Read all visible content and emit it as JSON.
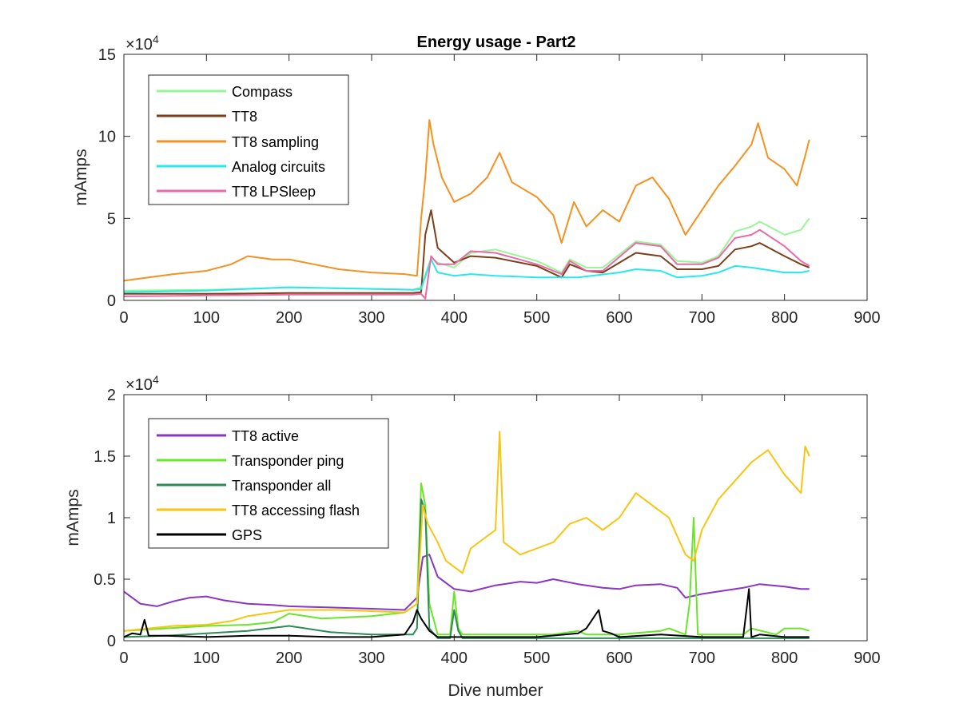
{
  "figure": {
    "x_axis_label": "Dive number",
    "y_axis_label": "mAmps"
  },
  "chart_data": [
    {
      "type": "line",
      "title": "Energy usage - Part2",
      "xlabel": "",
      "ylabel": "mAmps",
      "xlim": [
        0,
        900
      ],
      "ylim": [
        0,
        150000
      ],
      "xticks": [
        0,
        100,
        200,
        300,
        400,
        500,
        600,
        700,
        800,
        900
      ],
      "yticks": [
        0,
        50000,
        100000,
        150000
      ],
      "ytick_labels": [
        "0",
        "5",
        "10",
        "15"
      ],
      "y_exponent_label": "×10",
      "y_exponent_power": "4",
      "grid": false,
      "legend_position": "top-left",
      "series": [
        {
          "name": "Compass",
          "color": "#98f598",
          "x": [
            0,
            50,
            100,
            150,
            200,
            250,
            300,
            350,
            360,
            372,
            380,
            400,
            420,
            450,
            500,
            530,
            540,
            560,
            580,
            620,
            650,
            670,
            700,
            720,
            740,
            760,
            770,
            800,
            820,
            830
          ],
          "y": [
            6000,
            6200,
            6500,
            7000,
            8000,
            7500,
            7000,
            6500,
            8000,
            26000,
            23000,
            20000,
            29000,
            31000,
            24000,
            17000,
            25000,
            20000,
            20000,
            36000,
            34000,
            24000,
            23000,
            27000,
            42000,
            45000,
            48000,
            40000,
            43000,
            50000
          ]
        },
        {
          "name": "TT8",
          "color": "#7b3f1a",
          "x": [
            0,
            50,
            100,
            150,
            200,
            250,
            300,
            350,
            360,
            365,
            372,
            380,
            400,
            420,
            450,
            500,
            530,
            540,
            560,
            580,
            620,
            650,
            670,
            700,
            720,
            740,
            760,
            770,
            800,
            820,
            830
          ],
          "y": [
            4000,
            4000,
            4000,
            4200,
            4500,
            4500,
            4500,
            4500,
            5000,
            40000,
            55000,
            32000,
            23000,
            27000,
            26000,
            21000,
            14000,
            22000,
            18000,
            17000,
            29000,
            27000,
            19000,
            19000,
            21000,
            31000,
            33000,
            35000,
            27000,
            22000,
            20000
          ]
        },
        {
          "name": "TT8 sampling",
          "color": "#f39221",
          "x": [
            0,
            30,
            60,
            100,
            130,
            150,
            180,
            200,
            230,
            260,
            300,
            340,
            355,
            360,
            365,
            370,
            375,
            385,
            400,
            420,
            440,
            455,
            470,
            500,
            520,
            530,
            545,
            560,
            580,
            600,
            620,
            640,
            660,
            680,
            700,
            720,
            740,
            760,
            768,
            780,
            800,
            815,
            825,
            830
          ],
          "y": [
            12000,
            14000,
            16000,
            18000,
            22000,
            27000,
            25000,
            25000,
            22000,
            19000,
            17000,
            16000,
            15000,
            50000,
            75000,
            110000,
            95000,
            75000,
            60000,
            65000,
            75000,
            90000,
            72000,
            63000,
            52000,
            35000,
            60000,
            45000,
            55000,
            48000,
            70000,
            75000,
            62000,
            40000,
            55000,
            70000,
            82000,
            95000,
            108000,
            87000,
            80000,
            70000,
            88000,
            98000
          ]
        },
        {
          "name": "Analog circuits",
          "color": "#28e8ec",
          "x": [
            0,
            50,
            100,
            150,
            200,
            250,
            300,
            350,
            360,
            372,
            380,
            400,
            420,
            450,
            500,
            550,
            600,
            620,
            650,
            670,
            700,
            720,
            740,
            760,
            800,
            820,
            830
          ],
          "y": [
            5000,
            5500,
            6000,
            7000,
            8000,
            7500,
            7000,
            6500,
            7000,
            25000,
            17000,
            15000,
            16000,
            15000,
            14000,
            14000,
            17000,
            19000,
            18000,
            14000,
            15000,
            17000,
            21000,
            20000,
            17000,
            17000,
            18000
          ]
        },
        {
          "name": "TT8 LPSleep",
          "color": "#e96aa6",
          "x": [
            0,
            50,
            100,
            150,
            200,
            250,
            300,
            350,
            360,
            365,
            372,
            380,
            400,
            420,
            450,
            500,
            530,
            540,
            560,
            580,
            620,
            650,
            670,
            700,
            720,
            740,
            760,
            770,
            800,
            820,
            830
          ],
          "y": [
            2500,
            2700,
            3000,
            3200,
            3500,
            3500,
            3500,
            3500,
            4000,
            1000,
            27000,
            22000,
            22000,
            30000,
            29000,
            22000,
            16000,
            24000,
            18000,
            18000,
            35000,
            33000,
            22000,
            22000,
            26000,
            38000,
            40000,
            43000,
            33000,
            24000,
            21000
          ]
        }
      ]
    },
    {
      "type": "line",
      "title": "",
      "xlabel": "Dive number",
      "ylabel": "mAmps",
      "xlim": [
        0,
        900
      ],
      "ylim": [
        0,
        20000
      ],
      "xticks": [
        0,
        100,
        200,
        300,
        400,
        500,
        600,
        700,
        800,
        900
      ],
      "yticks": [
        0,
        5000,
        10000,
        15000,
        20000
      ],
      "ytick_labels": [
        "0",
        "0.5",
        "1",
        "1.5",
        "2"
      ],
      "y_exponent_label": "×10",
      "y_exponent_power": "4",
      "grid": false,
      "legend_position": "top-left",
      "series": [
        {
          "name": "TT8 active",
          "color": "#8a35c4",
          "x": [
            0,
            20,
            40,
            60,
            80,
            100,
            120,
            150,
            180,
            200,
            250,
            300,
            340,
            355,
            362,
            370,
            380,
            400,
            420,
            450,
            480,
            500,
            520,
            550,
            580,
            600,
            620,
            650,
            670,
            680,
            700,
            720,
            750,
            770,
            800,
            820,
            830
          ],
          "y": [
            4000,
            3000,
            2800,
            3200,
            3500,
            3600,
            3300,
            3000,
            2900,
            2800,
            2700,
            2600,
            2500,
            3500,
            6800,
            7000,
            5200,
            4200,
            4000,
            4500,
            4800,
            4700,
            5000,
            4600,
            4300,
            4200,
            4500,
            4600,
            4300,
            3500,
            3800,
            4000,
            4300,
            4600,
            4400,
            4200,
            4200
          ]
        },
        {
          "name": "Transponder ping",
          "color": "#6be52a",
          "x": [
            0,
            50,
            100,
            150,
            180,
            200,
            240,
            300,
            340,
            355,
            360,
            365,
            370,
            380,
            395,
            400,
            405,
            410,
            420,
            500,
            520,
            550,
            560,
            600,
            650,
            660,
            680,
            685,
            690,
            695,
            700,
            750,
            760,
            790,
            800,
            820,
            830
          ],
          "y": [
            800,
            1000,
            1200,
            1300,
            1500,
            2200,
            1800,
            2000,
            2300,
            3000,
            12800,
            11000,
            3000,
            500,
            500,
            4000,
            1000,
            500,
            500,
            500,
            500,
            800,
            500,
            500,
            800,
            1000,
            500,
            3000,
            10000,
            500,
            500,
            500,
            1000,
            500,
            1000,
            1000,
            800
          ]
        },
        {
          "name": "Transponder all",
          "color": "#2e8b57",
          "x": [
            0,
            50,
            100,
            150,
            200,
            250,
            300,
            350,
            355,
            360,
            365,
            370,
            380,
            395,
            400,
            405,
            410,
            420,
            500,
            600,
            700,
            800,
            830
          ],
          "y": [
            300,
            400,
            600,
            800,
            1200,
            700,
            500,
            500,
            1000,
            11500,
            10500,
            1000,
            200,
            200,
            2500,
            800,
            200,
            200,
            200,
            200,
            200,
            200,
            200
          ]
        },
        {
          "name": "TT8 accessing flash",
          "color": "#f7c512",
          "x": [
            0,
            30,
            60,
            100,
            130,
            150,
            180,
            200,
            230,
            260,
            300,
            340,
            355,
            362,
            368,
            380,
            390,
            400,
            410,
            420,
            440,
            450,
            455,
            460,
            480,
            500,
            520,
            540,
            560,
            580,
            600,
            620,
            640,
            660,
            680,
            690,
            700,
            720,
            740,
            760,
            780,
            800,
            820,
            825,
            830
          ],
          "y": [
            800,
            1000,
            1200,
            1300,
            1600,
            2000,
            2300,
            2500,
            2500,
            2500,
            2400,
            2300,
            3000,
            11000,
            9500,
            8000,
            6500,
            6000,
            5500,
            7500,
            8500,
            9000,
            17000,
            8000,
            7000,
            7500,
            8000,
            9500,
            10000,
            9000,
            10000,
            12000,
            11000,
            10000,
            7000,
            6500,
            9000,
            11500,
            13000,
            14500,
            15500,
            13500,
            12000,
            15800,
            15000
          ]
        },
        {
          "name": "GPS",
          "color": "#000000",
          "x": [
            0,
            10,
            20,
            25,
            30,
            50,
            100,
            150,
            200,
            250,
            300,
            340,
            350,
            355,
            360,
            370,
            380,
            400,
            450,
            500,
            550,
            560,
            575,
            580,
            590,
            600,
            650,
            700,
            750,
            757,
            760,
            770,
            800,
            830
          ],
          "y": [
            300,
            600,
            500,
            1700,
            400,
            400,
            300,
            400,
            400,
            300,
            300,
            500,
            1500,
            2500,
            1800,
            800,
            300,
            300,
            300,
            300,
            600,
            1000,
            2500,
            800,
            600,
            300,
            500,
            300,
            300,
            4200,
            300,
            500,
            300,
            300
          ]
        }
      ]
    }
  ]
}
